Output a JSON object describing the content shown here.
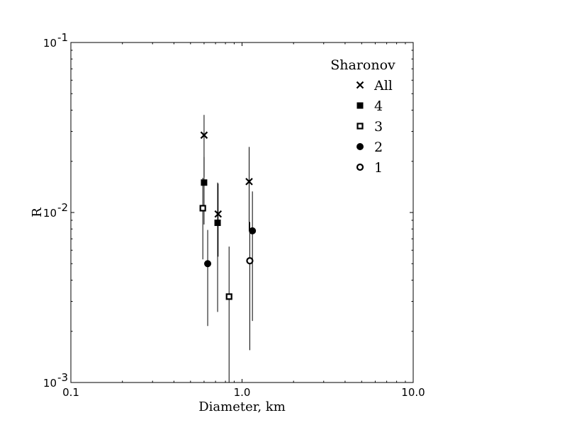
{
  "chart_data": {
    "type": "scatter",
    "xlabel": "Diameter, km",
    "ylabel": "R",
    "xscale": "log",
    "yscale": "log",
    "xlim": [
      0.1,
      10.0
    ],
    "ylim": [
      0.001,
      0.1
    ],
    "x_ticks": [
      {
        "value": 0.1,
        "label": "0.1"
      },
      {
        "value": 1.0,
        "label": "1.0"
      },
      {
        "value": 10.0,
        "label": "10.0"
      }
    ],
    "y_ticks": [
      {
        "value": 0.001,
        "base": "10",
        "exp": "-3"
      },
      {
        "value": 0.01,
        "base": "10",
        "exp": "-2"
      },
      {
        "value": 0.1,
        "base": "10",
        "exp": "-1"
      }
    ],
    "grid": false,
    "legend": {
      "title": "Sharonov",
      "position": "top-right",
      "entries": [
        {
          "label": "All",
          "marker": "x"
        },
        {
          "label": "4",
          "marker": "filled-square"
        },
        {
          "label": "3",
          "marker": "open-square"
        },
        {
          "label": "2",
          "marker": "filled-circle"
        },
        {
          "label": "1",
          "marker": "open-circle"
        }
      ]
    },
    "series": [
      {
        "name": "All",
        "marker": "x",
        "points": [
          {
            "x": 0.6,
            "y": 0.0285,
            "ylow": 0.0162,
            "yhigh": 0.0375
          },
          {
            "x": 0.725,
            "y": 0.0098,
            "ylow": 0.0055,
            "yhigh": 0.0148
          },
          {
            "x": 1.1,
            "y": 0.0152,
            "ylow": 0.0078,
            "yhigh": 0.0243
          }
        ]
      },
      {
        "name": "4",
        "marker": "filled-square",
        "points": [
          {
            "x": 0.6,
            "y": 0.015,
            "ylow": 0.0085,
            "yhigh": 0.0212
          },
          {
            "x": 0.72,
            "y": 0.0087,
            "ylow": 0.0026,
            "yhigh": 0.015
          }
        ]
      },
      {
        "name": "3",
        "marker": "open-square",
        "points": [
          {
            "x": 0.59,
            "y": 0.0106,
            "ylow": 0.0053,
            "yhigh": 0.016
          },
          {
            "x": 0.84,
            "y": 0.0032,
            "ylow": 0.001,
            "yhigh": 0.0063
          }
        ]
      },
      {
        "name": "2",
        "marker": "filled-circle",
        "points": [
          {
            "x": 0.63,
            "y": 0.005,
            "ylow": 0.00215,
            "yhigh": 0.0079
          },
          {
            "x": 1.15,
            "y": 0.0078,
            "ylow": 0.0023,
            "yhigh": 0.0133
          }
        ]
      },
      {
        "name": "1",
        "marker": "open-circle",
        "points": [
          {
            "x": 1.11,
            "y": 0.0052,
            "ylow": 0.00155,
            "yhigh": 0.0088
          }
        ]
      }
    ]
  }
}
